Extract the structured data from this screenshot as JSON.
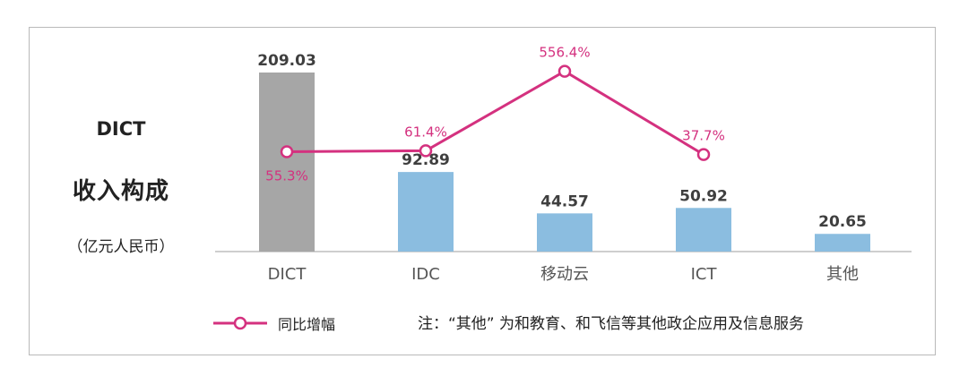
{
  "panel": {
    "title_line1": "DICT",
    "title_line2": "收入构成",
    "unit": "（亿元人民币）"
  },
  "legend": {
    "label": "同比增幅",
    "color": "#d4317f"
  },
  "note": "注：“其他” 为和教育、和飞信等其他政企应用及信息服务",
  "colors": {
    "highlight_bar": "#a6a6a6",
    "bar": "#8bbde0",
    "line": "#d4317f",
    "axis": "#bdbdbd"
  },
  "chart_data": {
    "type": "bar",
    "categories": [
      "DICT",
      "IDC",
      "移动云",
      "ICT",
      "其他"
    ],
    "series": [
      {
        "values": [
          209.03,
          92.89,
          44.57,
          50.92,
          20.65
        ]
      },
      {
        "name": "同比增幅",
        "type": "line",
        "values": [
          55.3,
          61.4,
          556.4,
          37.7,
          null
        ]
      }
    ],
    "value_labels": [
      "209.03",
      "92.89",
      "44.57",
      "50.92",
      "20.65"
    ],
    "growth_labels": [
      "55.3%",
      "61.4%",
      "556.4%",
      "37.7%",
      null
    ],
    "ylabel": "亿元人民币",
    "grid": false,
    "legend_position": "bottom-left"
  }
}
